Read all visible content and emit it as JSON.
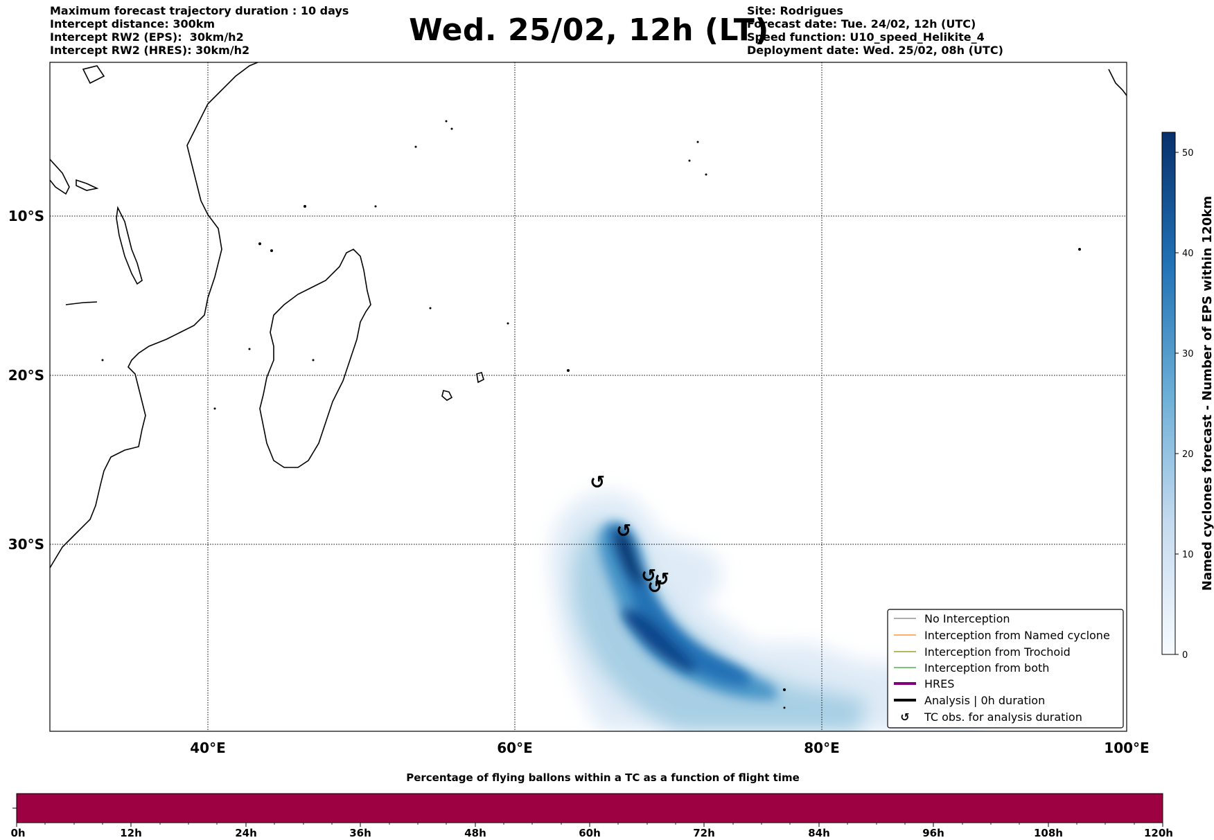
{
  "header_left": {
    "line1": "Maximum forecast trajectory duration : 10 days",
    "line2": "Intercept distance: 300km",
    "line3": "Intercept RW2 (EPS):  30km/h2",
    "line4": "Intercept RW2 (HRES): 30km/h2"
  },
  "title": "Wed. 25/02, 12h (LT)",
  "header_right": {
    "line1": "Site: Rodrigues",
    "line2": "Forecast date: Tue. 24/02, 12h (UTC)",
    "line3": "Speed function: U10_speed_Helikite_4",
    "line4": "Deployment date: Wed. 25/02, 08h (UTC)"
  },
  "map": {
    "lon_labels": [
      "40°E",
      "60°E",
      "80°E",
      "100°E"
    ],
    "lat_labels": [
      "10°S",
      "20°S",
      "30°S"
    ],
    "extent": {
      "lon": [
        30,
        100
      ],
      "lat": [
        -42,
        0
      ]
    },
    "gridlines": true
  },
  "legend": {
    "items": [
      {
        "label": "No Interception",
        "color": "#7f7f7f"
      },
      {
        "label": "Interception from Named cyclone",
        "color": "#ff7f0e"
      },
      {
        "label": "Interception from Trochoid",
        "color": "#8c8c00"
      },
      {
        "label": "Interception from both",
        "color": "#2ca02c"
      },
      {
        "label": "HRES",
        "color": "#800080"
      },
      {
        "label": "Analysis | 0h duration",
        "color": "#000000"
      },
      {
        "label": "TC obs. for analysis duration",
        "icon": "cyclone-symbol-icon"
      }
    ]
  },
  "colorbar": {
    "label": "Named cyclones forecast - Number of EPS within 120km",
    "ticks": [
      "0",
      "10",
      "20",
      "30",
      "40",
      "50"
    ],
    "max": 52,
    "colors": [
      "#f7fbff",
      "#c6dbef",
      "#6baed6",
      "#2171b5",
      "#08306b"
    ]
  },
  "bottom_bar": {
    "title": "Percentage of flying ballons within a TC as a function of flight time",
    "ticks": [
      "0h",
      "12h",
      "24h",
      "36h",
      "48h",
      "60h",
      "72h",
      "84h",
      "96h",
      "108h",
      "120h"
    ],
    "color": "#9e0142"
  },
  "cyclone_symbol": "↺"
}
